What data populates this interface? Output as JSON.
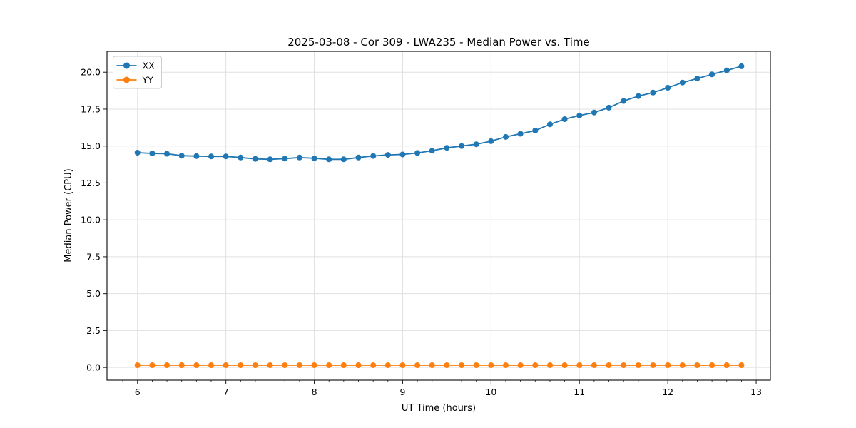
{
  "title": "2025-03-08 - Cor 309 - LWA235 - Median Power vs. Time",
  "axes": {
    "xlabel": "UT Time (hours)",
    "ylabel": "Median Power (CPU)"
  },
  "legend": {
    "position": "upper left",
    "items": [
      {
        "label": "XX",
        "color": "#1f77b4"
      },
      {
        "label": "YY",
        "color": "#ff7f0e"
      }
    ]
  },
  "colors": {
    "series_xx": "#1f77b4",
    "series_yy": "#ff7f0e",
    "grid": "#e0e0e0",
    "spine": "#1a1a1a",
    "tick": "#1a1a1a",
    "text": "#000000",
    "legend_border": "#cccccc",
    "background": "#ffffff"
  },
  "chart_data": {
    "type": "line",
    "title": "2025-03-08 - Cor 309 - LWA235 - Median Power vs. Time",
    "xlabel": "UT Time (hours)",
    "ylabel": "Median Power (CPU)",
    "xlim": [
      5.655,
      13.161
    ],
    "ylim": [
      -0.863,
      21.412
    ],
    "grid": true,
    "legend_position": "upper left",
    "x_ticks": [
      6,
      7,
      8,
      9,
      10,
      11,
      12,
      13
    ],
    "x_tick_labels": [
      "6",
      "7",
      "8",
      "9",
      "10",
      "11",
      "12",
      "13"
    ],
    "x_minor_tick_step": 0.166667,
    "y_ticks": [
      0.0,
      2.5,
      5.0,
      7.5,
      10.0,
      12.5,
      15.0,
      17.5,
      20.0
    ],
    "y_tick_labels": [
      "0.0",
      "2.5",
      "5.0",
      "7.5",
      "10.0",
      "12.5",
      "15.0",
      "17.5",
      "20.0"
    ],
    "marker": "circle",
    "x": [
      6.0,
      6.167,
      6.333,
      6.5,
      6.667,
      6.833,
      7.0,
      7.167,
      7.333,
      7.5,
      7.667,
      7.833,
      8.0,
      8.167,
      8.333,
      8.5,
      8.667,
      8.833,
      9.0,
      9.167,
      9.333,
      9.5,
      9.667,
      9.833,
      10.0,
      10.167,
      10.333,
      10.5,
      10.667,
      10.833,
      11.0,
      11.167,
      11.333,
      11.5,
      11.667,
      11.833,
      12.0,
      12.167,
      12.333,
      12.5,
      12.667,
      12.833
    ],
    "series": [
      {
        "name": "XX",
        "color": "#1f77b4",
        "values": [
          14.55,
          14.5,
          14.48,
          14.35,
          14.32,
          14.3,
          14.3,
          14.22,
          14.13,
          14.1,
          14.15,
          14.22,
          14.17,
          14.1,
          14.1,
          14.22,
          14.33,
          14.4,
          14.43,
          14.53,
          14.68,
          14.88,
          15.0,
          15.12,
          15.33,
          15.62,
          15.83,
          16.05,
          16.47,
          16.82,
          17.07,
          17.27,
          17.6,
          18.05,
          18.38,
          18.62,
          18.95,
          19.3,
          19.57,
          19.85,
          20.12,
          20.4
        ]
      },
      {
        "name": "YY",
        "color": "#ff7f0e",
        "values": [
          0.15,
          0.15,
          0.15,
          0.15,
          0.15,
          0.15,
          0.15,
          0.15,
          0.15,
          0.15,
          0.15,
          0.15,
          0.15,
          0.15,
          0.15,
          0.15,
          0.15,
          0.15,
          0.15,
          0.15,
          0.15,
          0.15,
          0.15,
          0.15,
          0.15,
          0.15,
          0.15,
          0.15,
          0.15,
          0.15,
          0.15,
          0.15,
          0.15,
          0.15,
          0.15,
          0.15,
          0.15,
          0.15,
          0.15,
          0.15,
          0.15,
          0.15
        ]
      }
    ]
  }
}
